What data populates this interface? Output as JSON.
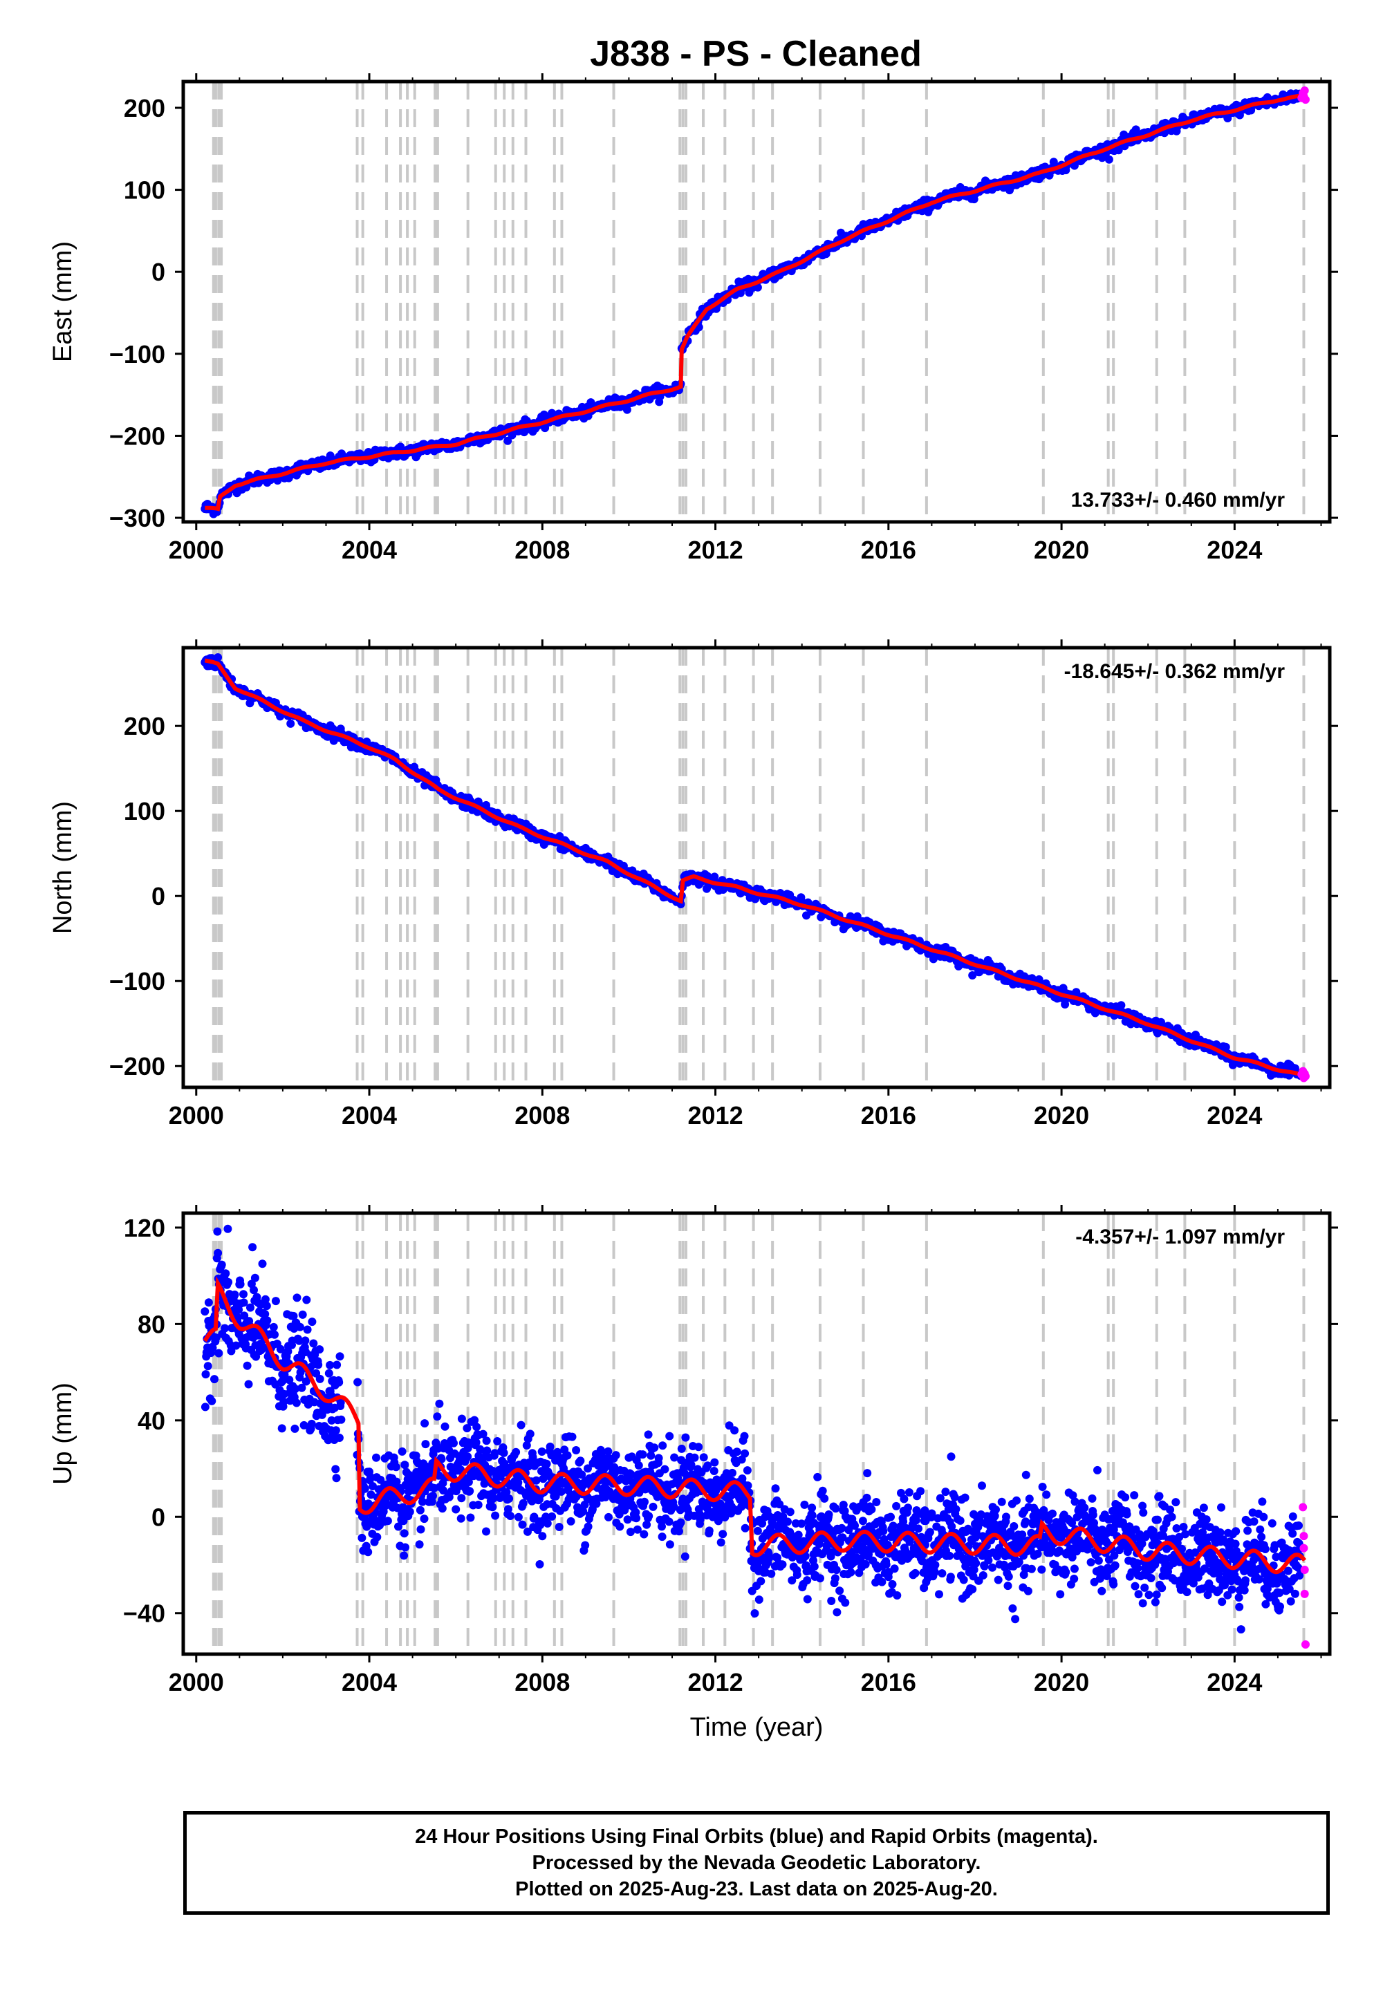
{
  "title": "J838  - PS - Cleaned",
  "colors": {
    "final": "#0000ff",
    "rapid": "#ff00ff",
    "model": "#ff0000",
    "events": "#c8c8c8"
  },
  "chart_data": [
    {
      "type": "scatter",
      "component": "east",
      "ylabel": "East (mm)",
      "xlabel": "",
      "xlim": [
        1999.7,
        2026.2
      ],
      "ylim": [
        -305,
        232
      ],
      "xticks": [
        2000,
        2004,
        2008,
        2012,
        2016,
        2020,
        2024
      ],
      "yticks": [
        -300,
        -200,
        -100,
        0,
        100,
        200
      ],
      "ytick_labels": [
        "−300",
        "−200",
        "−100",
        "0",
        "100",
        "200"
      ],
      "rate": "13.733+/- 0.460 mm/yr",
      "rate_position": "bottom-right",
      "model_knots": [
        [
          2000.2,
          -288
        ],
        [
          2000.5,
          -290
        ],
        [
          2000.55,
          -275
        ],
        [
          2000.9,
          -260
        ],
        [
          2003.0,
          -233
        ],
        [
          2006.0,
          -210
        ],
        [
          2009.0,
          -170
        ],
        [
          2011.2,
          -140
        ],
        [
          2011.22,
          -95
        ],
        [
          2011.35,
          -80
        ],
        [
          2011.8,
          -45
        ],
        [
          2012.5,
          -22
        ],
        [
          2013.5,
          0
        ],
        [
          2015.0,
          40
        ],
        [
          2017.0,
          85
        ],
        [
          2019.5,
          120
        ],
        [
          2021.0,
          150
        ],
        [
          2023.0,
          185
        ],
        [
          2025.0,
          210
        ],
        [
          2025.6,
          214
        ]
      ],
      "rapid_points": [
        [
          2025.55,
          212
        ],
        [
          2025.58,
          218
        ],
        [
          2025.6,
          214
        ],
        [
          2025.62,
          221
        ],
        [
          2025.64,
          210
        ]
      ],
      "noise": 3.5
    },
    {
      "type": "scatter",
      "component": "north",
      "ylabel": "North (mm)",
      "xlabel": "",
      "xlim": [
        1999.7,
        2026.2
      ],
      "ylim": [
        -225,
        292
      ],
      "xticks": [
        2000,
        2004,
        2008,
        2012,
        2016,
        2020,
        2024
      ],
      "yticks": [
        -200,
        -100,
        0,
        100,
        200
      ],
      "ytick_labels": [
        "−200",
        "−100",
        "0",
        "100",
        "200"
      ],
      "rate": "-18.645+/- 0.362 mm/yr",
      "rate_position": "top-right",
      "model_knots": [
        [
          2000.2,
          277
        ],
        [
          2000.5,
          272
        ],
        [
          2000.9,
          245
        ],
        [
          2002.5,
          205
        ],
        [
          2004.0,
          175
        ],
        [
          2004.6,
          160
        ],
        [
          2005.6,
          125
        ],
        [
          2007.5,
          80
        ],
        [
          2009.5,
          40
        ],
        [
          2011.2,
          -6
        ],
        [
          2011.25,
          18
        ],
        [
          2011.5,
          22
        ],
        [
          2012.5,
          10
        ],
        [
          2014.0,
          -10
        ],
        [
          2016.0,
          -45
        ],
        [
          2018.0,
          -80
        ],
        [
          2020.0,
          -115
        ],
        [
          2022.0,
          -150
        ],
        [
          2024.0,
          -190
        ],
        [
          2025.6,
          -212
        ]
      ],
      "rapid_points": [
        [
          2025.55,
          -210
        ],
        [
          2025.58,
          -206
        ],
        [
          2025.6,
          -214
        ],
        [
          2025.62,
          -209
        ],
        [
          2025.64,
          -212
        ]
      ],
      "noise": 3.5
    },
    {
      "type": "scatter",
      "component": "up",
      "ylabel": "Up (mm)",
      "xlabel": "Time (year)",
      "xlim": [
        1999.7,
        2026.2
      ],
      "ylim": [
        -57,
        126
      ],
      "xticks": [
        2000,
        2004,
        2008,
        2012,
        2016,
        2020,
        2024
      ],
      "yticks": [
        -40,
        0,
        40,
        80,
        120
      ],
      "ytick_labels": [
        "−40",
        "0",
        "40",
        "80",
        "120"
      ],
      "rate": "-4.357+/- 1.097 mm/yr",
      "rate_position": "top-right",
      "model_knots": [
        [
          2000.2,
          73
        ],
        [
          2000.45,
          74
        ],
        [
          2000.5,
          93
        ],
        [
          2001.0,
          82
        ],
        [
          2002.0,
          65
        ],
        [
          2003.0,
          52
        ],
        [
          2003.5,
          44
        ],
        [
          2003.75,
          40
        ],
        [
          2003.78,
          5
        ],
        [
          2004.5,
          8
        ],
        [
          2005.5,
          12
        ],
        [
          2005.55,
          20
        ],
        [
          2008.0,
          14
        ],
        [
          2010.0,
          13
        ],
        [
          2012.8,
          10
        ],
        [
          2012.85,
          -12
        ],
        [
          2015.0,
          -10
        ],
        [
          2019.5,
          -12
        ],
        [
          2019.55,
          -6
        ],
        [
          2022.0,
          -14
        ],
        [
          2025.6,
          -20
        ]
      ],
      "rapid_points": [
        [
          2025.58,
          4
        ],
        [
          2025.6,
          -8
        ],
        [
          2025.6,
          -13
        ],
        [
          2025.62,
          -22
        ],
        [
          2025.62,
          -32
        ],
        [
          2025.64,
          -53
        ]
      ],
      "noise": 9
    }
  ],
  "event_years": [
    2000.4,
    2000.45,
    2000.52,
    2000.58,
    2003.72,
    2003.85,
    2004.4,
    2004.72,
    2004.88,
    2005.05,
    2005.52,
    2005.58,
    2006.28,
    2006.92,
    2007.12,
    2007.32,
    2007.62,
    2008.28,
    2008.45,
    2009.65,
    2011.18,
    2011.25,
    2011.32,
    2011.72,
    2012.22,
    2012.88,
    2013.32,
    2014.42,
    2015.42,
    2016.88,
    2019.58,
    2021.08,
    2021.2,
    2022.2,
    2022.85,
    2024.0,
    2025.6
  ],
  "footer": {
    "line1": "24 Hour Positions Using Final Orbits (blue) and Rapid Orbits (magenta).",
    "line2": "Processed by the Nevada Geodetic Laboratory.",
    "line3": "Plotted on 2025-Aug-23. Last data on 2025-Aug-20."
  }
}
